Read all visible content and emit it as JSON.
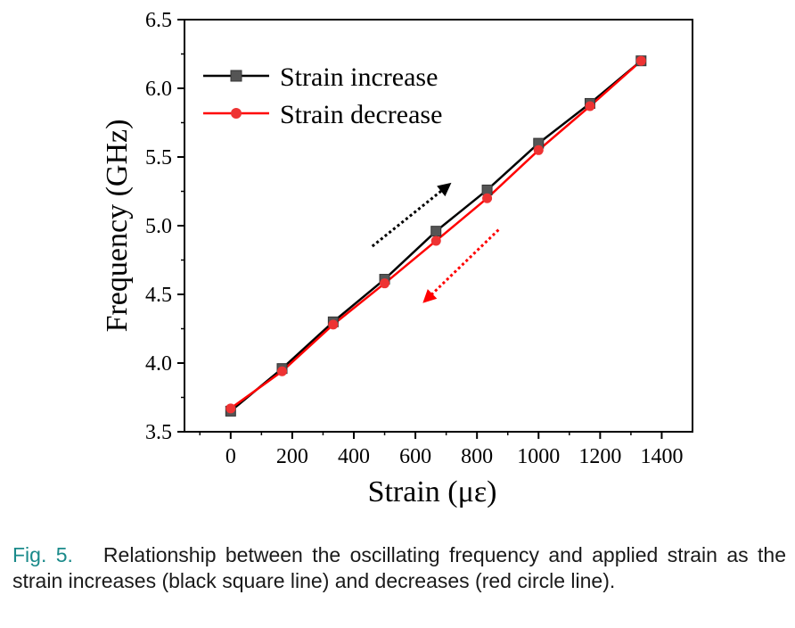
{
  "chart_data": {
    "type": "line",
    "xlabel": "Strain (με)",
    "ylabel": "Frequency (GHz)",
    "xlim": [
      -150,
      1500
    ],
    "ylim": [
      3.5,
      6.5
    ],
    "xticks": [
      "0",
      "200",
      "400",
      "600",
      "800",
      "1000",
      "1200",
      "1400"
    ],
    "xtick_values": [
      0,
      200,
      400,
      600,
      800,
      1000,
      1200,
      1400
    ],
    "yticks": [
      "3.5",
      "4.0",
      "4.5",
      "5.0",
      "5.5",
      "6.0",
      "6.5"
    ],
    "ytick_values": [
      3.5,
      4.0,
      4.5,
      5.0,
      5.5,
      6.0,
      6.5
    ],
    "series": [
      {
        "name": "Strain increase",
        "color": "#000000",
        "marker": "square",
        "marker_color": "#555555",
        "x": [
          0,
          167,
          333,
          500,
          667,
          833,
          1000,
          1167,
          1333
        ],
        "y": [
          3.65,
          3.96,
          4.3,
          4.61,
          4.96,
          5.26,
          5.6,
          5.89,
          6.2
        ]
      },
      {
        "name": "Strain decrease",
        "color": "#ff0000",
        "marker": "circle",
        "marker_color": "#ee3333",
        "x": [
          0,
          167,
          333,
          500,
          667,
          833,
          1000,
          1167,
          1333
        ],
        "y": [
          3.67,
          3.94,
          4.28,
          4.58,
          4.89,
          5.2,
          5.55,
          5.87,
          6.2
        ]
      }
    ],
    "legend_position": "top-left",
    "annotations": [
      {
        "kind": "arrow",
        "style": "dotted",
        "color": "#000000",
        "direction": "up-right",
        "from": [
          460,
          4.85
        ],
        "to": [
          710,
          5.3
        ]
      },
      {
        "kind": "arrow",
        "style": "dotted",
        "color": "#ff0000",
        "direction": "down-left",
        "from": [
          870,
          4.97
        ],
        "to": [
          630,
          4.45
        ]
      }
    ]
  },
  "caption": {
    "label": "Fig. 5.",
    "text": "Relationship between the oscillating frequency and applied strain as the strain increases (black square line) and decreases (red circle line)."
  }
}
